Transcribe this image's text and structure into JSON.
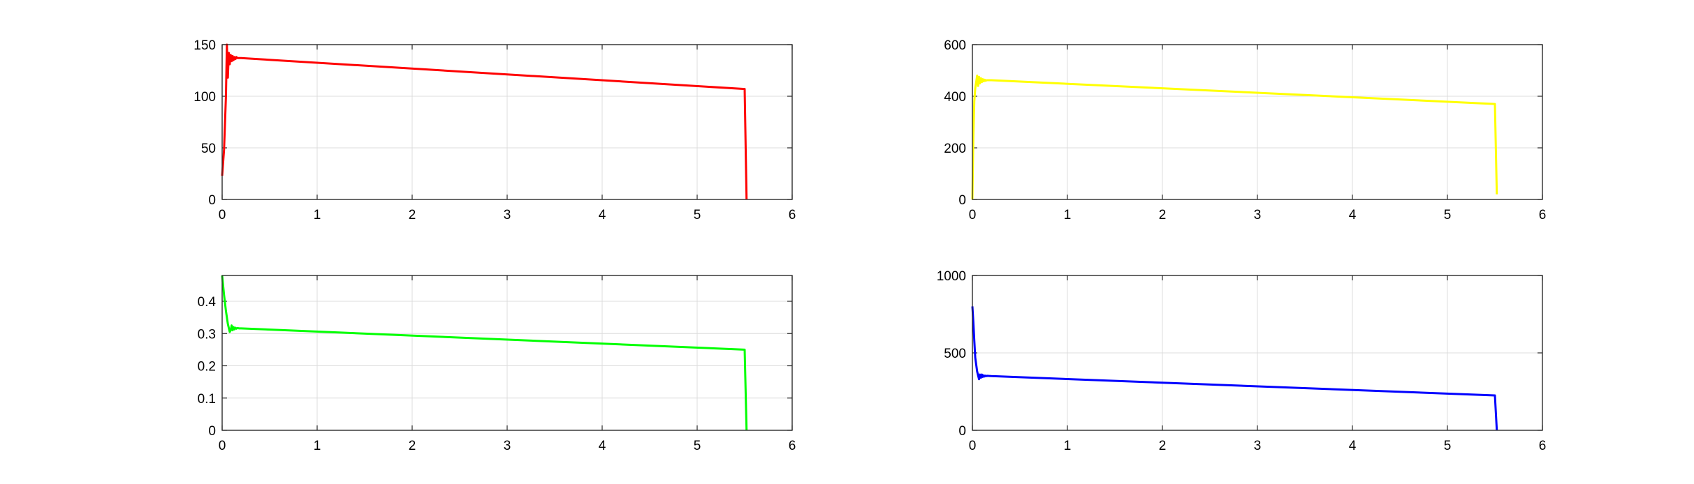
{
  "chart_data": [
    {
      "type": "line",
      "color": "#ff0000",
      "xlim": [
        0,
        6
      ],
      "ylim": [
        0,
        150
      ],
      "xticks": [
        "0",
        "1",
        "2",
        "3",
        "4",
        "5",
        "6"
      ],
      "yticks": [
        "0",
        "50",
        "100",
        "150"
      ],
      "grid": true,
      "series": [
        {
          "x": [
            0,
            0.02,
            0.04,
            0.05,
            0.06,
            0.07,
            0.08,
            0.09,
            0.1,
            0.11,
            0.12,
            0.13,
            0.14,
            0.15,
            0.16,
            0.18,
            0.2,
            5.5,
            5.52
          ],
          "y": [
            23,
            48,
            100,
            150,
            118,
            142,
            131,
            140,
            134,
            139,
            135,
            138,
            136,
            138,
            137,
            137,
            137,
            107,
            0
          ]
        }
      ]
    },
    {
      "type": "line",
      "color": "#ffff00",
      "xlim": [
        0,
        6
      ],
      "ylim": [
        0,
        600
      ],
      "xticks": [
        "0",
        "1",
        "2",
        "3",
        "4",
        "5",
        "6"
      ],
      "yticks": [
        "0",
        "200",
        "400",
        "600"
      ],
      "grid": true,
      "series": [
        {
          "x": [
            0,
            0.01,
            0.02,
            0.03,
            0.05,
            0.06,
            0.07,
            0.08,
            0.09,
            0.1,
            0.11,
            0.12,
            0.13,
            0.14,
            0.15,
            0.17,
            0.2,
            5.5,
            5.52
          ],
          "y": [
            0,
            240,
            380,
            430,
            480,
            440,
            475,
            450,
            470,
            455,
            466,
            458,
            464,
            460,
            462,
            462,
            462,
            370,
            20
          ]
        }
      ]
    },
    {
      "type": "line",
      "color": "#00ff00",
      "xlim": [
        0,
        6
      ],
      "ylim": [
        0,
        0.48
      ],
      "xticks": [
        "0",
        "1",
        "2",
        "3",
        "4",
        "5",
        "6"
      ],
      "yticks": [
        "0",
        "0.1",
        "0.2",
        "0.3",
        "0.4"
      ],
      "grid": true,
      "series": [
        {
          "x": [
            0,
            0.02,
            0.04,
            0.06,
            0.08,
            0.09,
            0.1,
            0.11,
            0.12,
            0.13,
            0.14,
            0.15,
            0.16,
            0.18,
            0.2,
            5.5,
            5.52
          ],
          "y": [
            0.48,
            0.42,
            0.37,
            0.33,
            0.305,
            0.31,
            0.325,
            0.31,
            0.32,
            0.313,
            0.318,
            0.315,
            0.317,
            0.316,
            0.316,
            0.25,
            0
          ]
        }
      ]
    },
    {
      "type": "line",
      "color": "#0000ff",
      "xlim": [
        0,
        6
      ],
      "ylim": [
        0,
        1000
      ],
      "xticks": [
        "0",
        "1",
        "2",
        "3",
        "4",
        "5",
        "6"
      ],
      "yticks": [
        "0",
        "500",
        "1000"
      ],
      "grid": true,
      "series": [
        {
          "x": [
            0,
            0.01,
            0.02,
            0.03,
            0.05,
            0.07,
            0.08,
            0.09,
            0.1,
            0.11,
            0.12,
            0.13,
            0.14,
            0.15,
            0.16,
            0.18,
            0.2,
            5.5,
            5.52
          ],
          "y": [
            800,
            700,
            580,
            470,
            380,
            330,
            360,
            340,
            360,
            345,
            355,
            348,
            353,
            350,
            352,
            351,
            350,
            225,
            0
          ]
        }
      ]
    }
  ]
}
